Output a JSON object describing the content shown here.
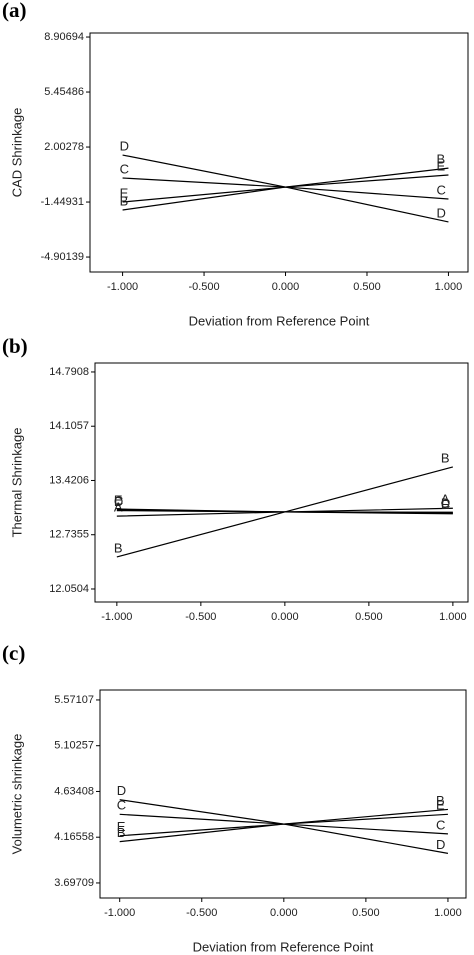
{
  "chart_data": [
    {
      "type": "line",
      "panel_label": "(a)",
      "y_label": "CAD Shrinkage",
      "x_label": "Deviation from Reference Point",
      "x": [
        -1,
        0,
        1
      ],
      "xlim": [
        -1.2,
        1.12
      ],
      "xticks": [
        {
          "value": -1,
          "label": "-1.000"
        },
        {
          "value": -0.5,
          "label": "-0.500"
        },
        {
          "value": 0,
          "label": "0.000"
        },
        {
          "value": 0.5,
          "label": "0.500"
        },
        {
          "value": 1,
          "label": "1.000"
        }
      ],
      "ylim": [
        -5.84,
        9.16
      ],
      "yticks": [
        -4.90139,
        -1.44931,
        2.00278,
        5.45486,
        8.90694
      ],
      "series": [
        {
          "name": "B",
          "color": "#000000",
          "values": [
            -1.95,
            -0.51,
            0.68
          ]
        },
        {
          "name": "E",
          "color": "#000000",
          "values": [
            -1.45,
            -0.51,
            0.25
          ]
        },
        {
          "name": "C",
          "color": "#000000",
          "values": [
            0.06,
            -0.51,
            -1.26
          ]
        },
        {
          "name": "D",
          "color": "#000000",
          "values": [
            1.5,
            -0.51,
            -2.7
          ]
        }
      ]
    },
    {
      "type": "line",
      "panel_label": "(b)",
      "y_label": "Thermal Shrinkage",
      "x": [
        -1,
        0,
        1
      ],
      "xlim": [
        -1.13,
        1.09
      ],
      "xticks": [
        {
          "value": -1,
          "label": "-1.000"
        },
        {
          "value": -0.5,
          "label": "-0.500"
        },
        {
          "value": 0,
          "label": "0.000"
        },
        {
          "value": 0.5,
          "label": "0.500"
        },
        {
          "value": 1,
          "label": "1.000"
        }
      ],
      "ylim": [
        11.886,
        14.904
      ],
      "yticks": [
        12.0504,
        12.7355,
        13.4206,
        14.1057,
        14.7908
      ],
      "series": [
        {
          "name": "A",
          "color": "#000000",
          "values": [
            12.97,
            13.023,
            13.07
          ]
        },
        {
          "name": "B",
          "color": "#000000",
          "values": [
            12.455,
            13.023,
            13.592
          ]
        },
        {
          "name": "C",
          "color": "#000000",
          "values": [
            13.05,
            13.023,
            13.01
          ]
        },
        {
          "name": "D",
          "color": "#000000",
          "values": [
            13.04,
            13.023,
            13.02
          ]
        },
        {
          "name": "E",
          "color": "#000000",
          "values": [
            13.06,
            13.023,
            13.0
          ]
        }
      ]
    },
    {
      "type": "line",
      "panel_label": "(c)",
      "y_label": "Volumetric shrinkage",
      "x_label": "Deviation from Reference Point",
      "x": [
        -1,
        0,
        1
      ],
      "xlim": [
        -1.12,
        1.11
      ],
      "xticks": [
        {
          "value": -1,
          "label": "-1.000"
        },
        {
          "value": -0.5,
          "label": "-0.500"
        },
        {
          "value": 0,
          "label": "0.000"
        },
        {
          "value": 0.5,
          "label": "0.500"
        },
        {
          "value": 1,
          "label": "1.000"
        }
      ],
      "ylim": [
        3.543,
        5.673
      ],
      "yticks": [
        3.69709,
        4.16558,
        4.63408,
        5.10257,
        5.57107
      ],
      "series": [
        {
          "name": "B",
          "color": "#000000",
          "values": [
            4.12,
            4.3,
            4.45
          ]
        },
        {
          "name": "E",
          "color": "#000000",
          "values": [
            4.18,
            4.3,
            4.4
          ]
        },
        {
          "name": "C",
          "color": "#000000",
          "values": [
            4.4,
            4.3,
            4.2
          ]
        },
        {
          "name": "D",
          "color": "#000000",
          "values": [
            4.55,
            4.3,
            4.0
          ]
        }
      ]
    }
  ]
}
